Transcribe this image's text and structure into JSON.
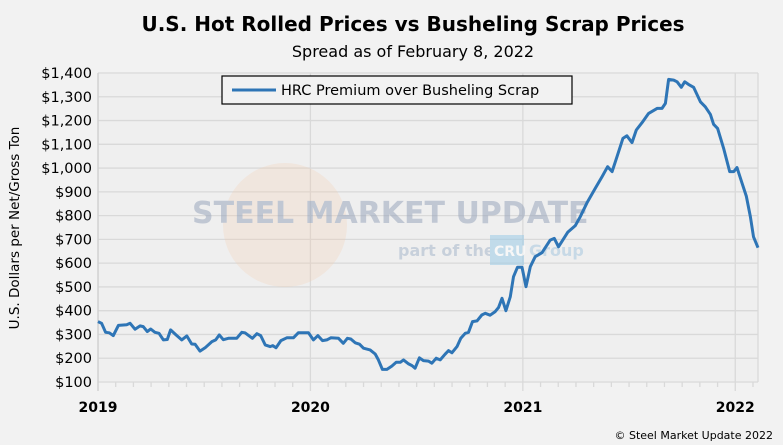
{
  "chart_data": {
    "type": "line",
    "title": "U.S. Hot Rolled Prices vs Busheling Scrap Prices",
    "subtitle": "Spread as of February 8, 2022",
    "ylabel": "U.S. Dollars per Net/Gross Ton",
    "xlabel": "",
    "ylim": [
      100,
      1400
    ],
    "xlim": [
      2019,
      2022.107
    ],
    "yticks": [
      "$100",
      "$200",
      "$300",
      "$400",
      "$500",
      "$600",
      "$700",
      "$800",
      "$900",
      "$1,000",
      "$1,100",
      "$1,200",
      "$1,300",
      "$1,400"
    ],
    "ytick_values": [
      100,
      200,
      300,
      400,
      500,
      600,
      700,
      800,
      900,
      1000,
      1100,
      1200,
      1300,
      1400
    ],
    "xticks": [
      "2019",
      "2020",
      "2021",
      "2022"
    ],
    "xtick_values": [
      2019,
      2020,
      2021,
      2022
    ],
    "grid": true,
    "legend": "top-center",
    "series": [
      {
        "name": "HRC Premium over Busheling Scrap",
        "color": "#2e75b6",
        "x": [
          2019.0,
          2019.017,
          2019.036,
          2019.053,
          2019.072,
          2019.096,
          2019.135,
          2019.151,
          2019.174,
          2019.198,
          2019.213,
          2019.232,
          2019.248,
          2019.268,
          2019.287,
          2019.308,
          2019.326,
          2019.342,
          2019.367,
          2019.394,
          2019.418,
          2019.441,
          2019.457,
          2019.48,
          2019.504,
          2019.536,
          2019.554,
          2019.571,
          2019.59,
          2019.614,
          2019.653,
          2019.677,
          2019.692,
          2019.727,
          2019.748,
          2019.766,
          2019.787,
          2019.81,
          2019.823,
          2019.838,
          2019.861,
          2019.889,
          2019.92,
          2019.943,
          2019.991,
          2020.014,
          2020.035,
          2020.057,
          2020.077,
          2020.096,
          2020.132,
          2020.155,
          2020.174,
          2020.19,
          2020.211,
          2020.231,
          2020.25,
          2020.281,
          2020.305,
          2020.32,
          2020.339,
          2020.36,
          2020.383,
          2020.404,
          2020.423,
          2020.438,
          2020.462,
          2020.478,
          2020.493,
          2020.513,
          2020.532,
          2020.556,
          2020.572,
          2020.592,
          2020.611,
          2020.634,
          2020.65,
          2020.666,
          2020.69,
          2020.708,
          2020.729,
          2020.744,
          2020.763,
          2020.784,
          2020.807,
          2020.823,
          2020.846,
          2020.87,
          2020.886,
          2020.902,
          2020.92,
          2020.941,
          2020.956,
          2020.975,
          2020.996,
          2021.015,
          2021.035,
          2021.058,
          2021.09,
          2021.129,
          2021.148,
          2021.168,
          2021.211,
          2021.247,
          2021.27,
          2021.302,
          2021.341,
          2021.373,
          2021.399,
          2021.42,
          2021.443,
          2021.471,
          2021.49,
          2021.514,
          2021.534,
          2021.561,
          2021.592,
          2021.632,
          2021.655,
          2021.671,
          2021.686,
          2021.71,
          2021.726,
          2021.746,
          2021.762,
          2021.78,
          2021.804,
          2021.836,
          2021.859,
          2021.883,
          2021.898,
          2021.917,
          2021.945,
          2021.974,
          2021.993,
          2022.008,
          2022.032,
          2022.052,
          2022.071,
          2022.086,
          2022.107
        ],
        "values": [
          354,
          347,
          309,
          307,
          295,
          338,
          341,
          347,
          322,
          336,
          333,
          312,
          323,
          309,
          305,
          277,
          279,
          319,
          298,
          277,
          294,
          260,
          259,
          230,
          244,
          270,
          277,
          298,
          278,
          284,
          284,
          309,
          307,
          284,
          303,
          295,
          256,
          249,
          253,
          244,
          274,
          286,
          286,
          307,
          307,
          277,
          295,
          274,
          277,
          286,
          284,
          263,
          284,
          281,
          265,
          259,
          242,
          235,
          218,
          193,
          153,
          153,
          167,
          183,
          183,
          193,
          176,
          169,
          158,
          202,
          190,
          188,
          179,
          200,
          193,
          217,
          232,
          223,
          249,
          284,
          305,
          309,
          354,
          357,
          382,
          389,
          381,
          396,
          414,
          452,
          400,
          459,
          543,
          583,
          583,
          501,
          585,
          627,
          644,
          697,
          704,
          669,
          730,
          758,
          795,
          854,
          915,
          964,
          1006,
          985,
          1048,
          1125,
          1136,
          1107,
          1160,
          1191,
          1230,
          1251,
          1251,
          1272,
          1373,
          1370,
          1363,
          1340,
          1363,
          1352,
          1340,
          1279,
          1258,
          1226,
          1184,
          1167,
          1083,
          985,
          985,
          1002,
          936,
          882,
          795,
          711,
          665
        ]
      }
    ]
  },
  "watermark": {
    "brand": "STEEL MARKET UPDATE",
    "tagline_pre": "part of the",
    "tagline_logo": "CRU",
    "tagline_post": "Group"
  },
  "copyright": "© Steel Market Update 2022",
  "colors": {
    "line": "#2e75b6",
    "grid": "#d9d9d9",
    "plot_bg": "#efefef"
  }
}
